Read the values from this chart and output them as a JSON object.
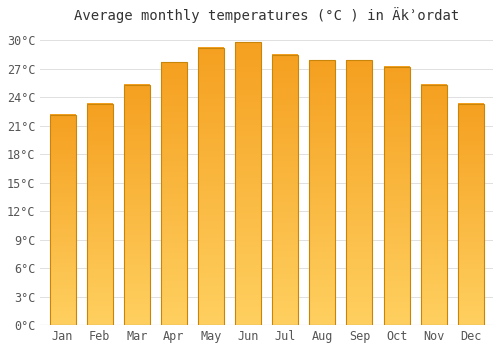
{
  "title": "Average monthly temperatures (°C ) in Äkʾordat",
  "months": [
    "Jan",
    "Feb",
    "Mar",
    "Apr",
    "May",
    "Jun",
    "Jul",
    "Aug",
    "Sep",
    "Oct",
    "Nov",
    "Dec"
  ],
  "values": [
    22.2,
    23.3,
    25.3,
    27.7,
    29.2,
    29.8,
    28.5,
    27.9,
    27.9,
    27.2,
    25.3,
    23.3
  ],
  "bar_color": "#F5A623",
  "bar_edge_color": "#C8850A",
  "background_color": "#FFFFFF",
  "grid_color": "#E0E0E0",
  "text_color": "#555555",
  "title_color": "#333333",
  "ylim": [
    0,
    31
  ],
  "yticks": [
    0,
    3,
    6,
    9,
    12,
    15,
    18,
    21,
    24,
    27,
    30
  ],
  "ytick_labels": [
    "0°C",
    "3°C",
    "6°C",
    "9°C",
    "12°C",
    "15°C",
    "18°C",
    "21°C",
    "24°C",
    "27°C",
    "30°C"
  ],
  "font_family": "monospace",
  "title_fontsize": 10,
  "tick_fontsize": 8.5,
  "bar_width": 0.7
}
